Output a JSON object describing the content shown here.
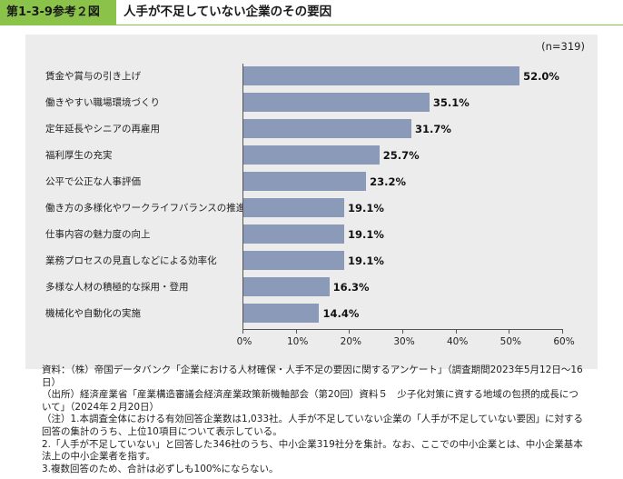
{
  "header": {
    "fig_label": "第1-3-9参考２図",
    "title": "人手が不足していない企業のその要因"
  },
  "n_label": "(n=319)",
  "chart_data": {
    "type": "bar",
    "orientation": "horizontal",
    "title": "人手が不足していない企業のその要因",
    "categories": [
      "賃金や賞与の引き上げ",
      "働きやすい職場環境づくり",
      "定年延長やシニアの再雇用",
      "福利厚生の充実",
      "公平で公正な人事評価",
      "働き方の多様化やワークライフバランスの推進",
      "仕事内容の魅力度の向上",
      "業務プロセスの見直しなどによる効率化",
      "多様な人材の積極的な採用・登用",
      "機械化や自動化の実施"
    ],
    "values": [
      52.0,
      35.1,
      31.7,
      25.7,
      23.2,
      19.1,
      19.1,
      19.1,
      16.3,
      14.4
    ],
    "value_labels": [
      "52.0%",
      "35.1%",
      "31.7%",
      "25.7%",
      "23.2%",
      "19.1%",
      "19.1%",
      "19.1%",
      "16.3%",
      "14.4%"
    ],
    "xlim": [
      0,
      60
    ],
    "xticks": [
      "0%",
      "10%",
      "20%",
      "30%",
      "40%",
      "50%",
      "60%"
    ],
    "grid": false,
    "bar_color": "#8a9ab8"
  },
  "notes": [
    "資料：（株）帝国データバンク「企業における人材確保・人手不足の要因に関するアンケート」（調査期間2023年5月12日～16日）",
    "（出所）経済産業省「産業構造審議会経済産業政策新機軸部会（第20回）資料５　少子化対策に資する地域の包摂的成長について」（2024年２月20日）",
    "（注）1.本調査全体における有効回答企業数は1,033社。人手が不足していない企業の「人手が不足していない要因」に対する回答の集計のうち、上位10項目について表示している。",
    "2.「人手が不足していない」と回答した346社のうち、中小企業319社分を集計。なお、ここでの中小企業とは、中小企業基本法上の中小企業者を指す。",
    "3.複数回答のため、合計は必ずしも100%にならない。"
  ],
  "colors": {
    "header_accent": "#8bc34a",
    "panel_bg": "#ececec"
  }
}
